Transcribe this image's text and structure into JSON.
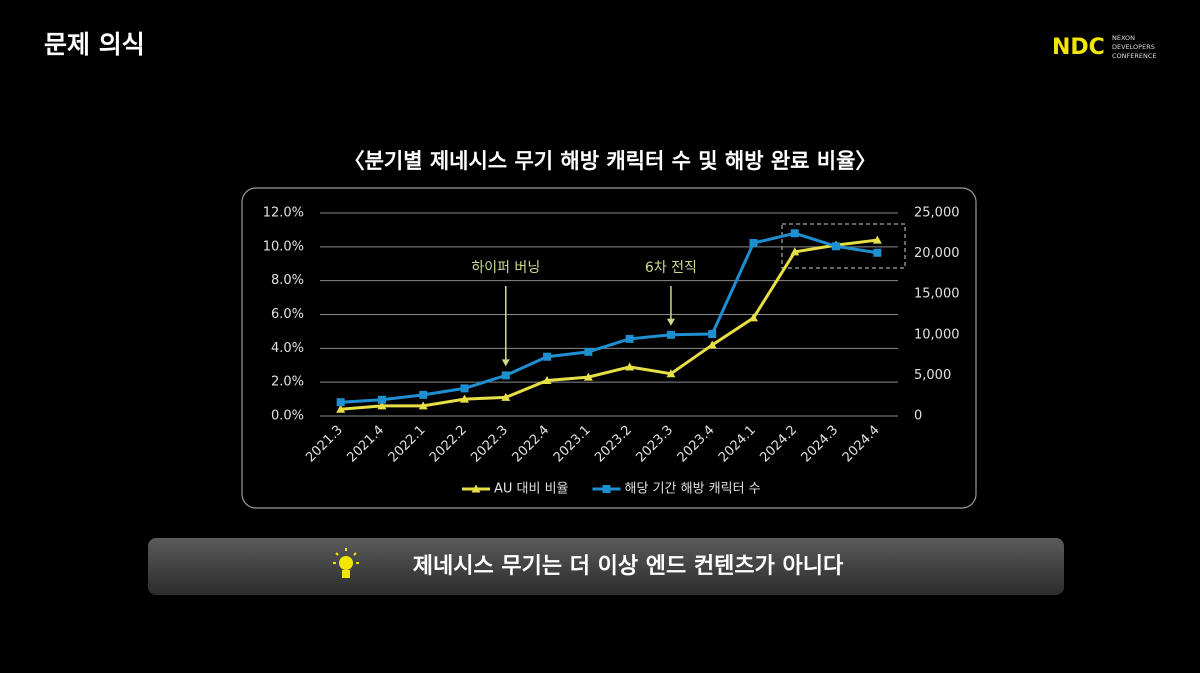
{
  "slide_title": "문제 의식",
  "logo": {
    "mark": "NDC",
    "text": [
      "NEXON",
      "DEVELOPERS",
      "CONFERENCE"
    ]
  },
  "message": "제네시스 무기는 더 이상 엔드 컨텐츠가 아니다",
  "chart_data": {
    "type": "line",
    "title": "〈분기별 제네시스 무기 해방 캐릭터 수 및 해방 완료 비율〉",
    "categories": [
      "2021.3",
      "2021.4",
      "2022.1",
      "2022.2",
      "2022.3",
      "2022.4",
      "2023.1",
      "2023.2",
      "2023.3",
      "2023.4",
      "2024.1",
      "2024.2",
      "2024.3",
      "2024.4"
    ],
    "series": [
      {
        "name": "AU 대비 비율",
        "color": "#e6df45",
        "marker": "triangle",
        "values": [
          0.4,
          0.6,
          0.6,
          1.0,
          1.1,
          2.1,
          2.3,
          2.9,
          2.5,
          4.2,
          5.8,
          9.7,
          10.1,
          10.4
        ]
      },
      {
        "name": "해당 기간 해방 캐릭터 수",
        "color": "#1e8fd0",
        "marker": "square",
        "axis": "y2",
        "values": [
          1700,
          2000,
          2600,
          3400,
          5000,
          7300,
          7900,
          9500,
          10000,
          10100,
          21300,
          22500,
          20900,
          20100
        ]
      }
    ],
    "ylim": [
      0,
      12
    ],
    "yticks": [
      {
        "value": 0,
        "label": "0.0%"
      },
      {
        "value": 2,
        "label": "2.0%"
      },
      {
        "value": 4,
        "label": "4.0%"
      },
      {
        "value": 6,
        "label": "6.0%"
      },
      {
        "value": 8,
        "label": "8.0%"
      },
      {
        "value": 10,
        "label": "10.0%"
      },
      {
        "value": 12,
        "label": "12.0%"
      }
    ],
    "y2lim": [
      0,
      25000
    ],
    "y2ticks": [
      0,
      {
        "value": 5000,
        "label": "5,000"
      },
      {
        "value": 10000,
        "label": "10,000"
      },
      {
        "value": 15000,
        "label": "15,000"
      },
      {
        "value": 20000,
        "label": "20,000"
      },
      {
        "value": 25000,
        "label": "25,000"
      }
    ],
    "grid": true,
    "legend": "bottom",
    "annotations": [
      {
        "text": "하이퍼 버닝",
        "at": "2022.3"
      },
      {
        "text": "6차 전직",
        "at": "2023.3"
      }
    ]
  }
}
